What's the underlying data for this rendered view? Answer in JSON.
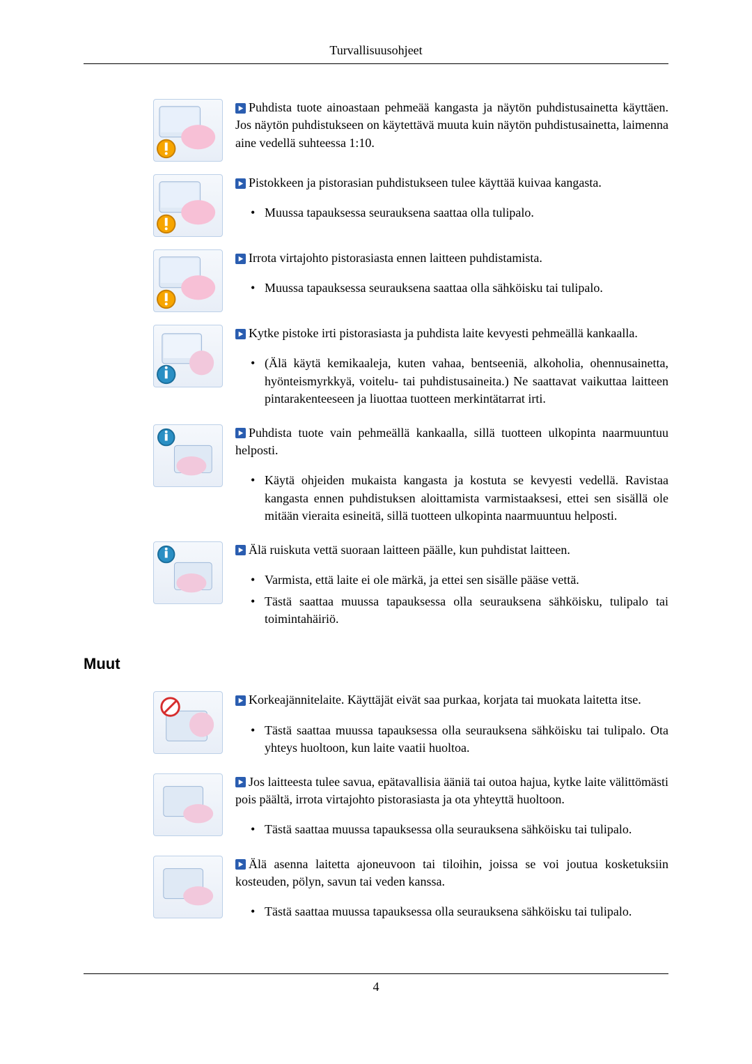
{
  "header": {
    "title": "Turvallisuusohjeet"
  },
  "arrow_marker_colors": {
    "outer": "#2a5db0",
    "inner": "#7fb3de"
  },
  "blocks": [
    {
      "lead": "Puhdista tuote ainoastaan pehmeää kangasta ja näytön puhdistusainetta käyttäen. Jos näytön puhdistukseen on käytettävä muuta kuin näytön puhdistusainetta, laimenna aine vedellä suhteessa 1:10.",
      "bullets": []
    },
    {
      "lead": "Pistokkeen ja pistorasian puhdistukseen tulee käyttää kuivaa kangasta.",
      "bullets": [
        "Muussa tapauksessa seurauksena saattaa olla tulipalo."
      ]
    },
    {
      "lead": "Irrota virtajohto pistorasiasta ennen laitteen puhdistamista.",
      "bullets": [
        "Muussa tapauksessa seurauksena saattaa olla sähköisku tai tulipalo."
      ]
    },
    {
      "lead": "Kytke pistoke irti pistorasiasta ja puhdista laite kevyesti pehmeällä kankaalla.",
      "bullets": [
        "(Älä käytä kemikaaleja, kuten vahaa, bentseeniä, alkoholia, ohennusainetta, hyönteismyrkkyä, voitelu- tai puhdistusaineita.) Ne saattavat vaikuttaa laitteen pintarakenteeseen ja liuottaa tuotteen merkintätarrat irti."
      ]
    },
    {
      "lead": "Puhdista tuote vain pehmeällä kankaalla, sillä tuotteen ulkopinta naarmuuntuu helposti.",
      "bullets": [
        "Käytä ohjeiden mukaista kangasta ja kostuta se kevyesti vedellä. Ravistaa kangasta ennen puhdistuksen aloittamista varmistaaksesi, ettei sen sisällä ole mitään vieraita esineitä, sillä tuotteen ulkopinta naarmuuntuu helposti."
      ]
    },
    {
      "lead": "Älä ruiskuta vettä suoraan laitteen päälle, kun puhdistat laitteen.",
      "bullets": [
        "Varmista, että laite ei ole märkä, ja ettei sen sisälle pääse vettä.",
        "Tästä saattaa muussa tapauksessa olla seurauksena sähköisku, tulipalo tai toimintahäiriö."
      ]
    }
  ],
  "section2_heading": "Muut",
  "blocks2": [
    {
      "lead": "Korkeajännitelaite. Käyttäjät eivät saa purkaa, korjata tai muokata laitetta itse.",
      "bullets": [
        "Tästä saattaa muussa tapauksessa olla seurauksena sähköisku tai tulipalo. Ota yhteys huoltoon, kun laite vaatii huoltoa."
      ]
    },
    {
      "lead": "Jos laitteesta tulee savua, epätavallisia ääniä tai outoa hajua, kytke laite välittömästi pois päältä, irrota virtajohto pistorasiasta ja ota yhteyttä huoltoon.",
      "bullets": [
        "Tästä saattaa muussa tapauksessa olla seurauksena sähköisku tai tulipalo."
      ]
    },
    {
      "lead": "Älä asenna laitetta ajoneuvoon tai tiloihin, joissa se voi joutua kosketuksiin kosteuden, pölyn, savun tai veden kanssa.",
      "bullets": [
        "Tästä saattaa muussa tapauksessa olla seurauksena sähköisku tai tulipalo."
      ]
    }
  ],
  "page_number": "4",
  "icon_styles": {
    "caution_fill": "#f7a500",
    "caution_stroke": "#c87f00",
    "info_fill": "#2a8fc4",
    "info_stroke": "#1a6d9a",
    "none_fill": "#e8eef7"
  }
}
